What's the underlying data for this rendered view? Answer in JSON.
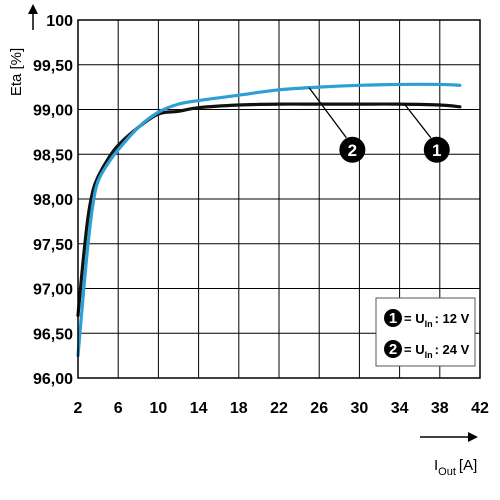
{
  "chart_data": {
    "type": "line",
    "ylabel": "Eta [%]",
    "xlabel_main": "I",
    "xlabel_sub": "Out",
    "xlabel_unit": "[A]",
    "xlim": [
      2,
      42
    ],
    "ylim": [
      96.0,
      100.0
    ],
    "x_ticks": [
      2,
      6,
      10,
      14,
      18,
      22,
      26,
      30,
      34,
      38,
      42
    ],
    "x_tick_labels": [
      "2",
      "6",
      "10",
      "14",
      "18",
      "22",
      "26",
      "30",
      "34",
      "38",
      "42"
    ],
    "y_ticks": [
      96.0,
      96.5,
      97.0,
      97.5,
      98.0,
      98.5,
      99.0,
      99.5,
      100.0
    ],
    "y_tick_labels": [
      "96,00",
      "96,50",
      "97,00",
      "97,50",
      "98,00",
      "98,50",
      "99,00",
      "99,50",
      "100"
    ],
    "grid": true,
    "series": [
      {
        "marker": "1",
        "color": "#111111",
        "x": [
          2,
          2.5,
          3,
          3.5,
          4,
          5,
          6,
          8,
          10,
          12,
          14,
          18,
          22,
          26,
          30,
          34,
          38,
          40
        ],
        "y": [
          96.7,
          97.3,
          97.8,
          98.1,
          98.25,
          98.45,
          98.6,
          98.8,
          98.95,
          98.98,
          99.02,
          99.05,
          99.06,
          99.06,
          99.06,
          99.06,
          99.05,
          99.03
        ]
      },
      {
        "marker": "2",
        "color": "#2e9fd6",
        "x": [
          2,
          2.5,
          3,
          3.5,
          4,
          5,
          6,
          8,
          10,
          12,
          14,
          18,
          22,
          26,
          30,
          34,
          38,
          40
        ],
        "y": [
          96.25,
          96.9,
          97.5,
          97.95,
          98.2,
          98.4,
          98.55,
          98.8,
          98.97,
          99.06,
          99.1,
          99.16,
          99.22,
          99.25,
          99.27,
          99.28,
          99.28,
          99.27
        ]
      }
    ],
    "legend": {
      "position": "bottom-right",
      "items": [
        {
          "marker": "1",
          "text": "= U",
          "sub": "In",
          "value": ": 12 V"
        },
        {
          "marker": "2",
          "text": "= U",
          "sub": "In",
          "value": ": 24 V"
        }
      ]
    },
    "callouts": [
      {
        "marker": "2",
        "series_index": 1,
        "at_x": 25,
        "label_x": 29.3,
        "label_y": 98.55
      },
      {
        "marker": "1",
        "series_index": 0,
        "at_x": 34.5,
        "label_x": 37.7,
        "label_y": 98.55
      }
    ]
  }
}
